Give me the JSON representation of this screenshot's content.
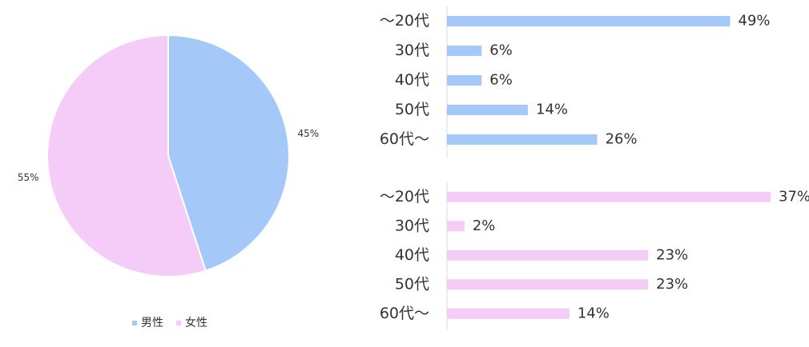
{
  "chart_data": [
    {
      "type": "pie",
      "categories": [
        "男性",
        "女性"
      ],
      "values": [
        45,
        55
      ],
      "value_labels": [
        "45%",
        "55%"
      ],
      "colors": [
        "#a4c8f8",
        "#f5cbf7"
      ],
      "legend": "bottom"
    },
    {
      "type": "bar",
      "orientation": "horizontal",
      "categories": [
        "～20代",
        "30代",
        "40代",
        "50代",
        "60代～"
      ],
      "values": [
        49,
        6,
        6,
        14,
        26
      ],
      "value_labels": [
        "49%",
        "6%",
        "6%",
        "14%",
        "26%"
      ],
      "color": "#a4c8f8",
      "xlim": [
        0,
        56
      ]
    },
    {
      "type": "bar",
      "orientation": "horizontal",
      "categories": [
        "～20代",
        "30代",
        "40代",
        "50代",
        "60代～"
      ],
      "values": [
        37,
        2,
        23,
        23,
        14
      ],
      "value_labels": [
        "37%",
        "2%",
        "23%",
        "23%",
        "14%"
      ],
      "color": "#f5cbf7",
      "xlim": [
        0,
        37
      ]
    }
  ]
}
